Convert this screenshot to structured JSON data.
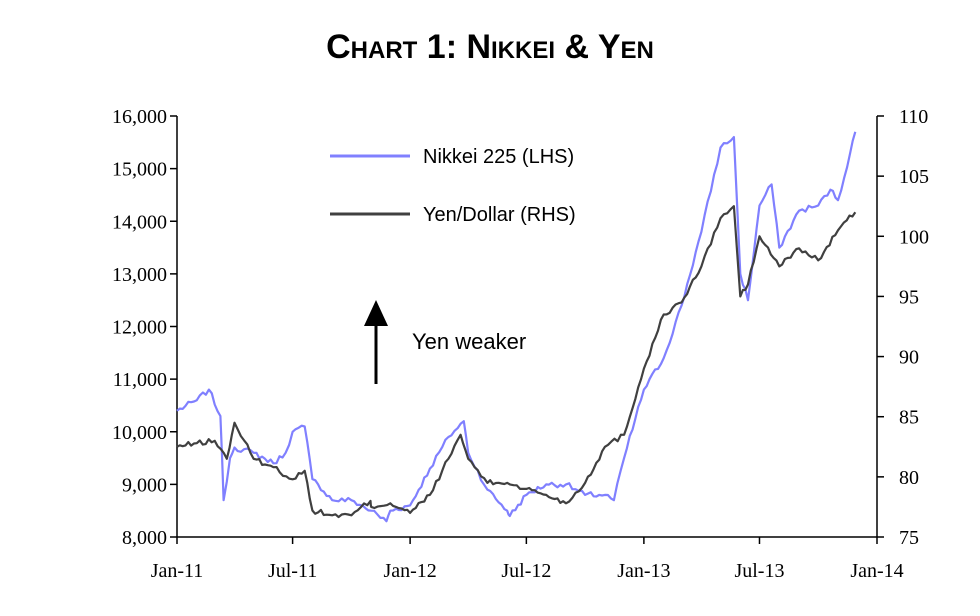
{
  "chart_data": {
    "type": "line",
    "title": "Chart 1: Nikkei & Yen",
    "x_ticks": [
      "Jan-11",
      "Jul-11",
      "Jan-12",
      "Jul-12",
      "Jan-13",
      "Jul-13",
      "Jan-14"
    ],
    "xlim": [
      "2011-01",
      "2014-01"
    ],
    "y_left": {
      "ylim": [
        8000,
        16000
      ],
      "ticks": [
        "8,000",
        "9,000",
        "10,000",
        "11,000",
        "12,000",
        "13,000",
        "14,000",
        "15,000",
        "16,000"
      ]
    },
    "y_right": {
      "ylim": [
        75,
        110
      ],
      "ticks": [
        "75",
        "80",
        "85",
        "90",
        "95",
        "100",
        "105",
        "110"
      ]
    },
    "legend_position": "top-center",
    "annotation": {
      "text": "Yen weaker",
      "arrow": "up"
    },
    "series": [
      {
        "name": "Nikkei 225 (LHS)",
        "axis": "left",
        "color": "#8080ff",
        "x": [
          "2011-01",
          "2011-02",
          "2011-02-20",
          "2011-03-10",
          "2011-03-15",
          "2011-03-25",
          "2011-04",
          "2011-05",
          "2011-06",
          "2011-06-20",
          "2011-07",
          "2011-07-20",
          "2011-08",
          "2011-08-10",
          "2011-09",
          "2011-10",
          "2011-11",
          "2011-11-25",
          "2011-12",
          "2012-01",
          "2012-02",
          "2012-03",
          "2012-03-25",
          "2012-04",
          "2012-05",
          "2012-06",
          "2012-06-05",
          "2012-07",
          "2012-08",
          "2012-09",
          "2012-10",
          "2012-11",
          "2012-11-15",
          "2012-12",
          "2013-01",
          "2013-02",
          "2013-03",
          "2013-04",
          "2013-05",
          "2013-05-22",
          "2013-06",
          "2013-06-13",
          "2013-07",
          "2013-07-20",
          "2013-08",
          "2013-09",
          "2013-10",
          "2013-10-20",
          "2013-11",
          "2013-11-20",
          "2013-11-28"
        ],
        "values": [
          10400,
          10600,
          10800,
          10300,
          8700,
          9500,
          9700,
          9600,
          9400,
          9600,
          10000,
          10100,
          9100,
          9000,
          8700,
          8700,
          8500,
          8300,
          8500,
          8600,
          9300,
          9900,
          10200,
          9600,
          8900,
          8500,
          8400,
          8800,
          9000,
          9000,
          8800,
          8800,
          8700,
          9500,
          10800,
          11400,
          12400,
          13800,
          15400,
          15600,
          13000,
          12500,
          14300,
          14700,
          13500,
          14200,
          14300,
          14600,
          14400,
          15300,
          15700
        ]
      },
      {
        "name": "Yen/Dollar (RHS)",
        "axis": "right",
        "color": "#404040",
        "x": [
          "2011-01",
          "2011-02",
          "2011-03",
          "2011-03-20",
          "2011-04",
          "2011-05",
          "2011-06",
          "2011-07",
          "2011-07-20",
          "2011-08",
          "2011-09",
          "2011-10",
          "2011-10-31",
          "2011-11",
          "2011-12",
          "2012-01",
          "2012-02",
          "2012-03",
          "2012-03-20",
          "2012-04",
          "2012-05",
          "2012-06",
          "2012-07",
          "2012-08",
          "2012-09",
          "2012-10",
          "2012-11",
          "2012-12",
          "2013-01",
          "2013-02",
          "2013-03",
          "2013-04",
          "2013-05",
          "2013-05-22",
          "2013-06",
          "2013-06-13",
          "2013-07",
          "2013-08",
          "2013-09",
          "2013-10",
          "2013-11",
          "2013-11-28"
        ],
        "values": [
          82.5,
          82.8,
          83,
          81.5,
          84.5,
          81.5,
          80.8,
          79.8,
          80.5,
          77.2,
          76.8,
          76.8,
          78,
          77.5,
          77.8,
          77,
          78.5,
          81.5,
          83.5,
          81.5,
          79.5,
          79.5,
          79,
          78.5,
          77.8,
          79.5,
          82.5,
          83.5,
          89,
          93.5,
          94.5,
          97.5,
          101.5,
          102.5,
          95,
          96,
          100,
          97.5,
          99,
          98,
          100.5,
          102
        ]
      }
    ]
  }
}
